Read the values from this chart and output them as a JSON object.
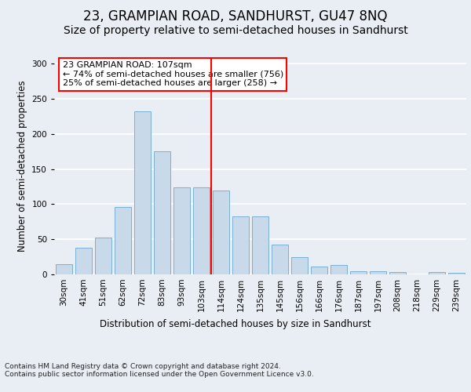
{
  "title": "23, GRAMPIAN ROAD, SANDHURST, GU47 8NQ",
  "subtitle": "Size of property relative to semi-detached houses in Sandhurst",
  "xlabel": "Distribution of semi-detached houses by size in Sandhurst",
  "ylabel": "Number of semi-detached properties",
  "categories": [
    "30sqm",
    "41sqm",
    "51sqm",
    "62sqm",
    "72sqm",
    "83sqm",
    "93sqm",
    "103sqm",
    "114sqm",
    "124sqm",
    "135sqm",
    "145sqm",
    "156sqm",
    "166sqm",
    "176sqm",
    "187sqm",
    "197sqm",
    "208sqm",
    "218sqm",
    "229sqm",
    "239sqm"
  ],
  "values": [
    15,
    38,
    53,
    96,
    232,
    175,
    124,
    124,
    119,
    83,
    83,
    42,
    25,
    11,
    13,
    5,
    5,
    3,
    0,
    3,
    2
  ],
  "bar_color": "#c8daea",
  "bar_edge_color": "#7aafd4",
  "vline_position": 7.5,
  "vline_color": "red",
  "annotation_text": "23 GRAMPIAN ROAD: 107sqm\n← 74% of semi-detached houses are smaller (756)\n25% of semi-detached houses are larger (258) →",
  "annotation_box_color": "white",
  "annotation_box_edge_color": "red",
  "ylim": [
    0,
    310
  ],
  "yticks": [
    0,
    50,
    100,
    150,
    200,
    250,
    300
  ],
  "footer_text": "Contains HM Land Registry data © Crown copyright and database right 2024.\nContains public sector information licensed under the Open Government Licence v3.0.",
  "title_fontsize": 12,
  "subtitle_fontsize": 10,
  "axis_label_fontsize": 8.5,
  "tick_fontsize": 7.5,
  "annotation_fontsize": 8,
  "footer_fontsize": 6.5,
  "background_color": "#e8eef4",
  "plot_background_color": "#e8eef4"
}
